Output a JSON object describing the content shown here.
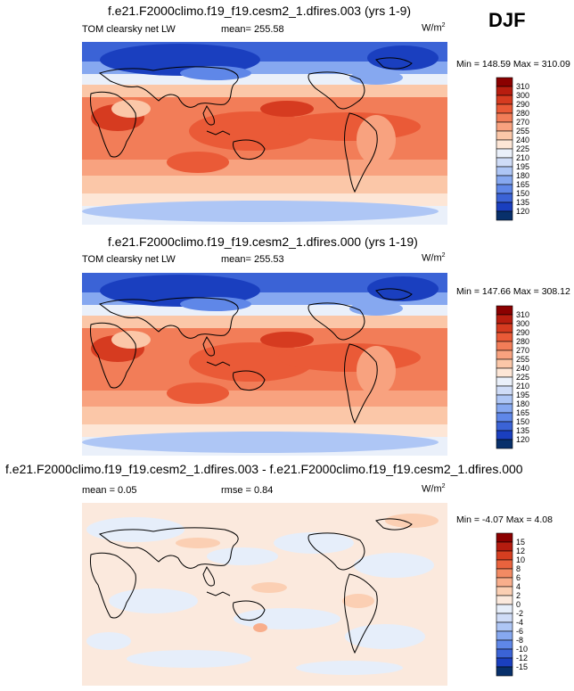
{
  "season": "DJF",
  "colors": {
    "abs_scale": [
      "#08306b",
      "#1a3fbf",
      "#3b63d6",
      "#5f87e8",
      "#86a8f0",
      "#aec6f5",
      "#cfdcf7",
      "#eaf0fa",
      "#fde6d6",
      "#fbc7a8",
      "#f8a27f",
      "#f27d58",
      "#ea5a37",
      "#d63b20",
      "#b81d0f",
      "#8b0000"
    ],
    "diff_scale": [
      "#08306b",
      "#1a3fbf",
      "#3b63d6",
      "#5f87e8",
      "#86a8f0",
      "#aec6f5",
      "#cfdcf7",
      "#e6eefa",
      "#fbe9dd",
      "#fbcfb3",
      "#f8ae8c",
      "#f28a63",
      "#e9633e",
      "#d53e20",
      "#b51c0f",
      "#8b0000"
    ],
    "ocean_base": "#f9a582",
    "diff_base": "#f7e1d3",
    "coast": "#000000"
  },
  "panels": [
    {
      "title": "f.e21.F2000climo.f19_f19.cesm2_1.dfires.003 (yrs 1-9)",
      "left_label": "TOM clearsky net LW",
      "center_label": "mean= 255.58",
      "units": "W/m",
      "units_sup": "2",
      "minmax": "Min = 148.59 Max = 310.09",
      "colorbar_labels": [
        "310",
        "300",
        "290",
        "280",
        "270",
        "255",
        "240",
        "225",
        "210",
        "195",
        "180",
        "165",
        "150",
        "135",
        "120"
      ]
    },
    {
      "title": "f.e21.F2000climo.f19_f19.cesm2_1.dfires.000 (yrs 1-19)",
      "left_label": "TOM clearsky net LW",
      "center_label": "mean= 255.53",
      "units": "W/m",
      "units_sup": "2",
      "minmax": "Min = 147.66 Max = 308.12",
      "colorbar_labels": [
        "310",
        "300",
        "290",
        "280",
        "270",
        "255",
        "240",
        "225",
        "210",
        "195",
        "180",
        "165",
        "150",
        "135",
        "120"
      ]
    },
    {
      "title": "f.e21.F2000climo.f19_f19.cesm2_1.dfires.003 - f.e21.F2000climo.f19_f19.cesm2_1.dfires.000",
      "left_label": "mean =   0.05",
      "center_label": "rmse =   0.84",
      "units": "W/m",
      "units_sup": "2",
      "minmax": "Min =  -4.07 Max =   4.08",
      "colorbar_labels": [
        "15",
        "12",
        "10",
        "8",
        "6",
        "4",
        "2",
        "0",
        "-2",
        "-4",
        "-6",
        "-8",
        "-10",
        "-12",
        "-15"
      ]
    }
  ],
  "chart_data": [
    {
      "type": "heatmap",
      "title": "f.e21.F2000climo.f19_f19.cesm2_1.dfires.003 (yrs 1-9)",
      "variable": "TOM clearsky net LW",
      "mean": 255.58,
      "min": 148.59,
      "max": 310.09,
      "units": "W/m2",
      "levels": [
        120,
        135,
        150,
        165,
        180,
        195,
        210,
        225,
        240,
        255,
        270,
        280,
        290,
        300,
        310
      ]
    },
    {
      "type": "heatmap",
      "title": "f.e21.F2000climo.f19_f19.cesm2_1.dfires.000 (yrs 1-19)",
      "variable": "TOM clearsky net LW",
      "mean": 255.53,
      "min": 147.66,
      "max": 308.12,
      "units": "W/m2",
      "levels": [
        120,
        135,
        150,
        165,
        180,
        195,
        210,
        225,
        240,
        255,
        270,
        280,
        290,
        300,
        310
      ]
    },
    {
      "type": "heatmap",
      "title": "f.e21.F2000climo.f19_f19.cesm2_1.dfires.003 - f.e21.F2000climo.f19_f19.cesm2_1.dfires.000",
      "mean": 0.05,
      "rmse": 0.84,
      "min": -4.07,
      "max": 4.08,
      "units": "W/m2",
      "levels": [
        -15,
        -12,
        -10,
        -8,
        -6,
        -4,
        -2,
        0,
        2,
        4,
        6,
        8,
        10,
        12,
        15
      ]
    }
  ]
}
